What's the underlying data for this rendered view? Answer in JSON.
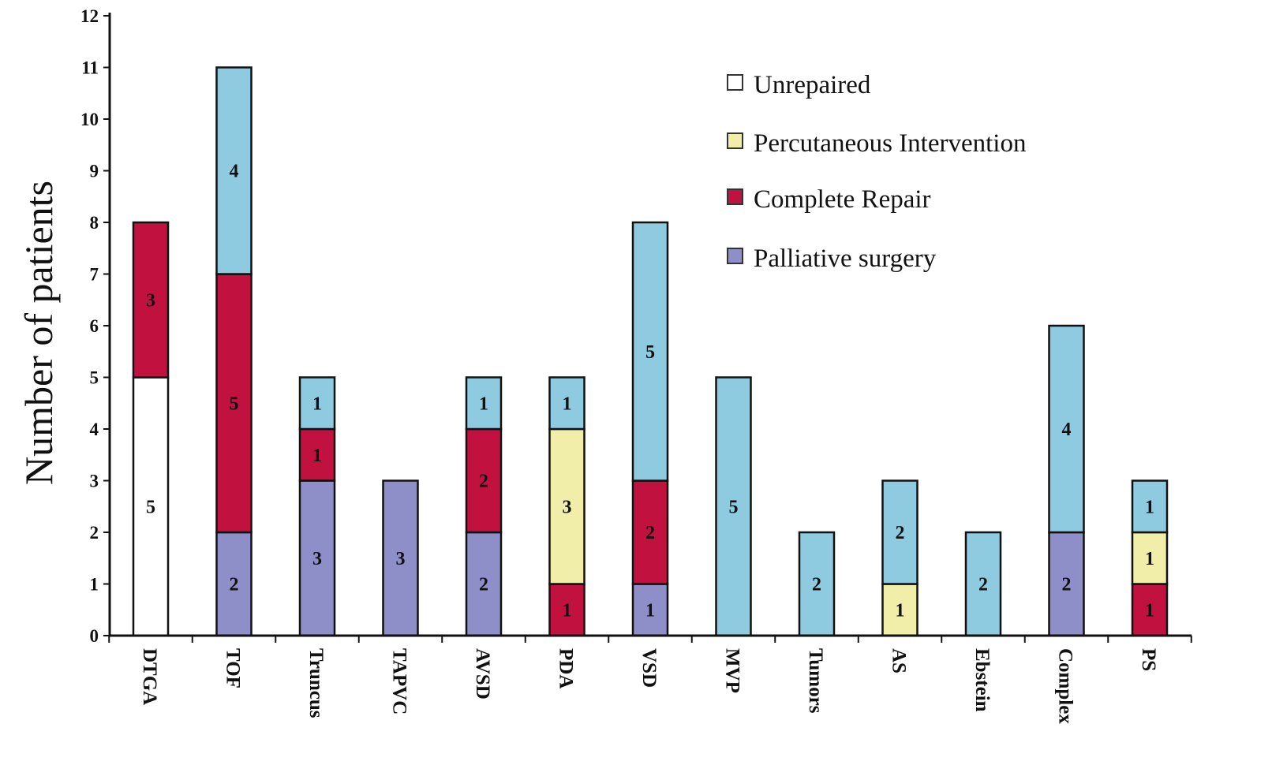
{
  "chart_data": {
    "type": "bar",
    "stacked": true,
    "title": "",
    "xlabel": "",
    "ylabel": "Number of patients",
    "ylim": [
      0,
      12
    ],
    "yticks": [
      0,
      1,
      2,
      3,
      4,
      5,
      6,
      7,
      8,
      9,
      10,
      11,
      12
    ],
    "grid": false,
    "legend_position": "top-right",
    "categories": [
      "DTGA",
      "TOF",
      "Truncus",
      "TAPVC",
      "AVSD",
      "PDA",
      "VSD",
      "MVP",
      "Tumors",
      "AS",
      "Ebstein",
      "Complex",
      "PS"
    ],
    "series": [
      {
        "name": "Palliative surgery",
        "color": "#8e8ec9",
        "in_legend": true,
        "values": [
          0,
          2,
          3,
          3,
          2,
          0,
          1,
          0,
          0,
          0,
          0,
          2,
          0
        ]
      },
      {
        "name": "Unrepaired",
        "color": "#ffffff",
        "in_legend": true,
        "values": [
          5,
          0,
          0,
          0,
          0,
          0,
          0,
          0,
          0,
          0,
          0,
          0,
          0
        ]
      },
      {
        "name": "Complete Repair",
        "color": "#c1123f",
        "in_legend": true,
        "values": [
          3,
          5,
          1,
          0,
          2,
          1,
          2,
          0,
          0,
          0,
          0,
          0,
          1
        ]
      },
      {
        "name": "Percutaneous Intervention",
        "color": "#f1eeaa",
        "in_legend": true,
        "values": [
          0,
          0,
          0,
          0,
          0,
          3,
          0,
          0,
          0,
          1,
          0,
          0,
          1
        ]
      },
      {
        "name": null,
        "color": "#8ecbe0",
        "in_legend": false,
        "values": [
          0,
          4,
          1,
          0,
          1,
          1,
          5,
          5,
          2,
          2,
          2,
          4,
          1
        ]
      }
    ],
    "legend_order": [
      "Unrepaired",
      "Percutaneous Intervention",
      "Complete Repair",
      "Palliative surgery"
    ]
  }
}
